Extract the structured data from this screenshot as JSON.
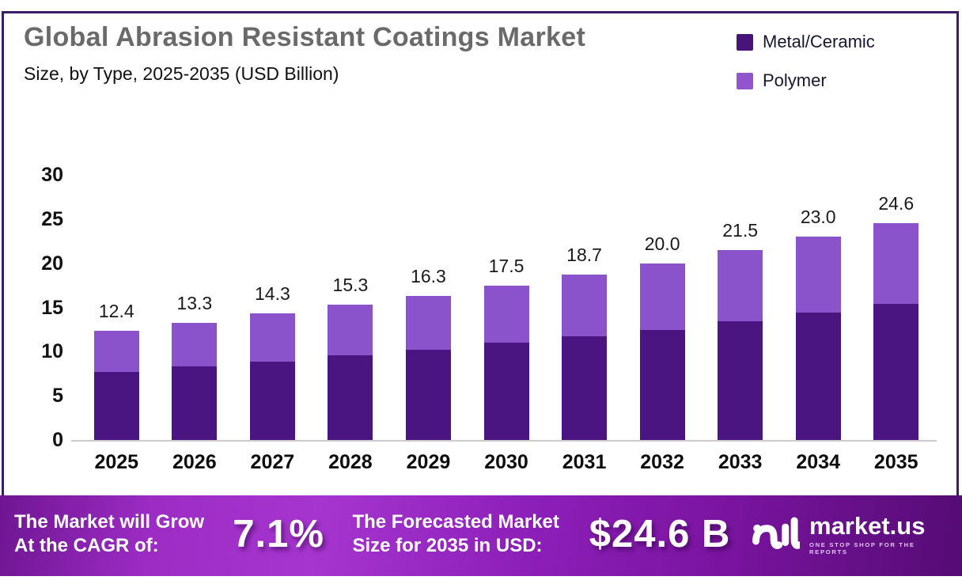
{
  "header": {
    "title": "Global Abrasion Resistant Coatings Market",
    "subtitle": "Size, by Type, 2025-2035 (USD Billion)"
  },
  "legend": [
    {
      "label": "Metal/Ceramic",
      "color": "#47147a"
    },
    {
      "label": "Polymer",
      "color": "#9156cd"
    }
  ],
  "chart_data": {
    "type": "bar",
    "stacked": true,
    "title": "Global Abrasion Resistant Coatings Market Size, by Type, 2025-2035 (USD Billion)",
    "xlabel": "",
    "ylabel": "USD Billion",
    "ylim": [
      0,
      30
    ],
    "yticks": [
      0,
      5,
      10,
      15,
      20,
      25,
      30
    ],
    "grid": false,
    "legend_position": "top-right",
    "categories": [
      "2025",
      "2026",
      "2027",
      "2028",
      "2029",
      "2030",
      "2031",
      "2032",
      "2033",
      "2034",
      "2035"
    ],
    "series": [
      {
        "name": "Metal/Ceramic",
        "color": "#4a1580",
        "values": [
          7.7,
          8.3,
          8.9,
          9.6,
          10.2,
          11.0,
          11.7,
          12.5,
          13.4,
          14.4,
          15.4
        ]
      },
      {
        "name": "Polymer",
        "color": "#8a52cb",
        "values": [
          4.7,
          5.0,
          5.4,
          5.7,
          6.1,
          6.5,
          7.0,
          7.5,
          8.1,
          8.6,
          9.2
        ]
      }
    ],
    "totals": [
      12.4,
      13.3,
      14.3,
      15.3,
      16.3,
      17.5,
      18.7,
      20.0,
      21.5,
      23.0,
      24.6
    ],
    "total_labels": [
      "12.4",
      "13.3",
      "14.3",
      "15.3",
      "16.3",
      "17.5",
      "18.7",
      "20.0",
      "21.5",
      "23.0",
      "24.6"
    ]
  },
  "banner": {
    "cagr_label_line1": "The Market will Grow",
    "cagr_label_line2": "At the CAGR of:",
    "cagr_value": "7.1%",
    "forecast_label_line1": "The Forecasted Market",
    "forecast_label_line2": "Size for 2035 in USD:",
    "forecast_value": "$24.6 B",
    "brand_name": "market.us",
    "brand_tagline": "ONE STOP SHOP FOR THE REPORTS"
  },
  "colors": {
    "frame_border": "#3b1c66",
    "title_gray": "#6a6a6a",
    "axis_line": "#cccccc",
    "banner_gradient_start": "#6f1692",
    "banner_gradient_mid": "#a535ce",
    "banner_gradient_end": "#540c73",
    "metal_ceramic": "#4a1580",
    "polymer": "#8a52cb"
  }
}
